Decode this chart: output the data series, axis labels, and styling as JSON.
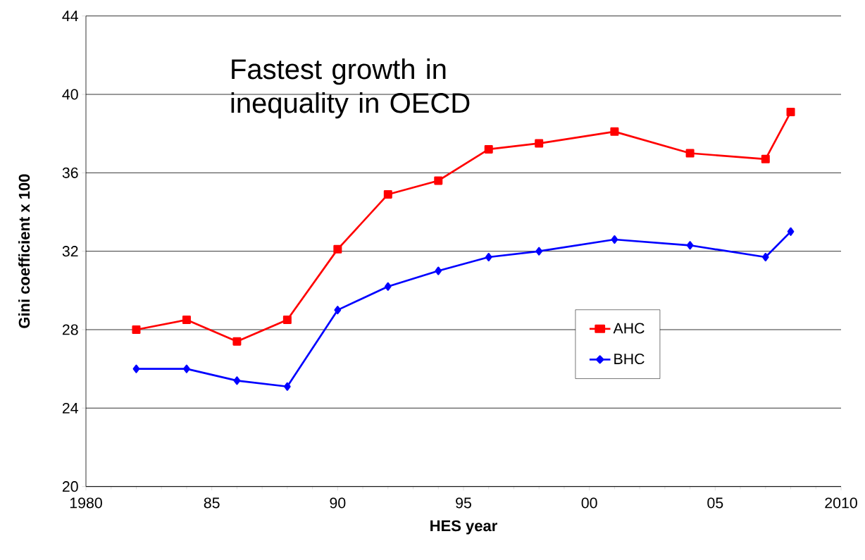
{
  "chart_data": {
    "type": "line",
    "xlabel": "HES year",
    "ylabel": "Gini coefficient x 100",
    "annotations": [
      "Fastest growth in inequality in OECD"
    ],
    "x": [
      1982,
      1984,
      1986,
      1988,
      1990,
      1992,
      1994,
      1996,
      1998,
      2001,
      2004,
      2007,
      2008
    ],
    "series": [
      {
        "name": "AHC",
        "color": "#ff0000",
        "marker": "square",
        "values": [
          28.0,
          28.5,
          27.4,
          28.5,
          32.1,
          34.9,
          35.6,
          37.2,
          37.5,
          38.1,
          37.0,
          36.7,
          39.1
        ]
      },
      {
        "name": "BHC",
        "color": "#0000ff",
        "marker": "diamond",
        "values": [
          26.0,
          26.0,
          25.4,
          25.1,
          29.0,
          30.2,
          31.0,
          31.7,
          32.0,
          32.6,
          32.3,
          31.7,
          33.0
        ]
      }
    ],
    "xlim": [
      1980,
      2010
    ],
    "ylim": [
      20,
      44
    ],
    "xticks": [
      1980,
      {
        "value": 1985,
        "label": "85"
      },
      {
        "value": 1990,
        "label": "90"
      },
      {
        "value": 1995,
        "label": "95"
      },
      {
        "value": 2000,
        "label": "00"
      },
      {
        "value": 2005,
        "label": "05"
      },
      2010
    ],
    "yticks": [
      20,
      24,
      28,
      32,
      36,
      40,
      44
    ],
    "grid": "y",
    "legend": "right",
    "line_style": "solid"
  }
}
